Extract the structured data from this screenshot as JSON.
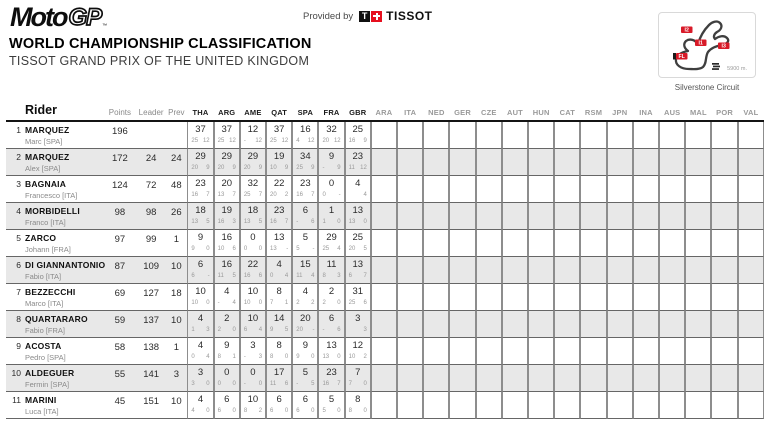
{
  "header": {
    "logo": {
      "moto": "Moto",
      "gp": "GP",
      "tm": "™"
    },
    "provided_by": "Provided by",
    "tissot_wordmark": "TISSOT",
    "title": "WORLD CHAMPIONSHIP CLASSIFICATION",
    "subtitle": "TISSOT GRAND PRIX OF THE UNITED KINGDOM",
    "circuit": {
      "name": "Silverstone Circuit",
      "length": "5900 m.",
      "labels": [
        "I2",
        "I1",
        "I3",
        "FL"
      ]
    }
  },
  "colors": {
    "accent_red": "#d81a28",
    "row_alt": "#e8e8e8",
    "grid_line": "#666666",
    "muted_text": "#8a8a8a"
  },
  "table": {
    "columns": {
      "rider": "Rider",
      "points": "Points",
      "leader": "Leader",
      "prev": "Prev"
    },
    "races_active": [
      "THA",
      "ARG",
      "AME",
      "QAT",
      "SPA",
      "FRA",
      "GBR"
    ],
    "races_upcoming": [
      "ARA",
      "ITA",
      "NED",
      "GER",
      "CZE",
      "AUT",
      "HUN",
      "CAT",
      "RSM",
      "JPN",
      "INA",
      "AUS",
      "MAL",
      "POR",
      "VAL"
    ],
    "rows": [
      {
        "pos": "1",
        "surname": "MARQUEZ",
        "given": "Marc [SPA]",
        "points": "196",
        "leader": "",
        "prev": "",
        "results": [
          {
            "t": "37",
            "r": "25",
            "s": "12"
          },
          {
            "t": "37",
            "r": "25",
            "s": "12"
          },
          {
            "t": "12",
            "r": "-",
            "s": "12"
          },
          {
            "t": "37",
            "r": "25",
            "s": "12"
          },
          {
            "t": "16",
            "r": "4",
            "s": "12"
          },
          {
            "t": "32",
            "r": "20",
            "s": "12"
          },
          {
            "t": "25",
            "r": "16",
            "s": "9"
          }
        ]
      },
      {
        "pos": "2",
        "surname": "MARQUEZ",
        "given": "Alex [SPA]",
        "points": "172",
        "leader": "24",
        "prev": "24",
        "results": [
          {
            "t": "29",
            "r": "20",
            "s": "9"
          },
          {
            "t": "29",
            "r": "20",
            "s": "9"
          },
          {
            "t": "29",
            "r": "20",
            "s": "9"
          },
          {
            "t": "19",
            "r": "10",
            "s": "9"
          },
          {
            "t": "34",
            "r": "25",
            "s": "9"
          },
          {
            "t": "9",
            "r": "-",
            "s": "9"
          },
          {
            "t": "23",
            "r": "11",
            "s": "12"
          }
        ]
      },
      {
        "pos": "3",
        "surname": "BAGNAIA",
        "given": "Francesco [ITA]",
        "points": "124",
        "leader": "72",
        "prev": "48",
        "results": [
          {
            "t": "23",
            "r": "16",
            "s": "7"
          },
          {
            "t": "20",
            "r": "13",
            "s": "7"
          },
          {
            "t": "32",
            "r": "25",
            "s": "7"
          },
          {
            "t": "22",
            "r": "20",
            "s": "2"
          },
          {
            "t": "23",
            "r": "16",
            "s": "7"
          },
          {
            "t": "0",
            "r": "0",
            "s": "-"
          },
          {
            "t": "4",
            "r": "",
            "s": "4"
          }
        ]
      },
      {
        "pos": "4",
        "surname": "MORBIDELLI",
        "given": "Franco [ITA]",
        "points": "98",
        "leader": "98",
        "prev": "26",
        "results": [
          {
            "t": "18",
            "r": "13",
            "s": "5"
          },
          {
            "t": "19",
            "r": "16",
            "s": "3"
          },
          {
            "t": "18",
            "r": "13",
            "s": "5"
          },
          {
            "t": "23",
            "r": "16",
            "s": "7"
          },
          {
            "t": "6",
            "r": "-",
            "s": "6"
          },
          {
            "t": "1",
            "r": "1",
            "s": "0"
          },
          {
            "t": "13",
            "r": "13",
            "s": "0"
          }
        ]
      },
      {
        "pos": "5",
        "surname": "ZARCO",
        "given": "Johann [FRA]",
        "points": "97",
        "leader": "99",
        "prev": "1",
        "results": [
          {
            "t": "9",
            "r": "9",
            "s": "0"
          },
          {
            "t": "16",
            "r": "10",
            "s": "6"
          },
          {
            "t": "0",
            "r": "0",
            "s": "0"
          },
          {
            "t": "13",
            "r": "13",
            "s": "-"
          },
          {
            "t": "5",
            "r": "5",
            "s": "-"
          },
          {
            "t": "29",
            "r": "25",
            "s": "4"
          },
          {
            "t": "25",
            "r": "20",
            "s": "5"
          }
        ]
      },
      {
        "pos": "6",
        "surname": "DI GIANNANTONIO",
        "given": "Fabio [ITA]",
        "points": "87",
        "leader": "109",
        "prev": "10",
        "results": [
          {
            "t": "6",
            "r": "6",
            "s": "-"
          },
          {
            "t": "16",
            "r": "11",
            "s": "5"
          },
          {
            "t": "22",
            "r": "16",
            "s": "6"
          },
          {
            "t": "4",
            "r": "0",
            "s": "4"
          },
          {
            "t": "15",
            "r": "11",
            "s": "4"
          },
          {
            "t": "11",
            "r": "8",
            "s": "3"
          },
          {
            "t": "13",
            "r": "6",
            "s": "7"
          }
        ]
      },
      {
        "pos": "7",
        "surname": "BEZZECCHI",
        "given": "Marco [ITA]",
        "points": "69",
        "leader": "127",
        "prev": "18",
        "results": [
          {
            "t": "10",
            "r": "10",
            "s": "0"
          },
          {
            "t": "4",
            "r": "-",
            "s": "4"
          },
          {
            "t": "10",
            "r": "10",
            "s": "0"
          },
          {
            "t": "8",
            "r": "7",
            "s": "1"
          },
          {
            "t": "4",
            "r": "2",
            "s": "2"
          },
          {
            "t": "2",
            "r": "2",
            "s": "0"
          },
          {
            "t": "31",
            "r": "25",
            "s": "6"
          }
        ]
      },
      {
        "pos": "8",
        "surname": "QUARTARARO",
        "given": "Fabio [FRA]",
        "points": "59",
        "leader": "137",
        "prev": "10",
        "results": [
          {
            "t": "4",
            "r": "1",
            "s": "3"
          },
          {
            "t": "2",
            "r": "2",
            "s": "0"
          },
          {
            "t": "10",
            "r": "6",
            "s": "4"
          },
          {
            "t": "14",
            "r": "9",
            "s": "5"
          },
          {
            "t": "20",
            "r": "20",
            "s": "-"
          },
          {
            "t": "6",
            "r": "-",
            "s": "6"
          },
          {
            "t": "3",
            "r": "",
            "s": "3"
          }
        ]
      },
      {
        "pos": "9",
        "surname": "ACOSTA",
        "given": "Pedro [SPA]",
        "points": "58",
        "leader": "138",
        "prev": "1",
        "results": [
          {
            "t": "4",
            "r": "0",
            "s": "4"
          },
          {
            "t": "9",
            "r": "8",
            "s": "1"
          },
          {
            "t": "3",
            "r": "-",
            "s": "3"
          },
          {
            "t": "8",
            "r": "8",
            "s": "0"
          },
          {
            "t": "9",
            "r": "9",
            "s": "0"
          },
          {
            "t": "13",
            "r": "13",
            "s": "0"
          },
          {
            "t": "12",
            "r": "10",
            "s": "2"
          }
        ]
      },
      {
        "pos": "10",
        "surname": "ALDEGUER",
        "given": "Fermin [SPA]",
        "points": "55",
        "leader": "141",
        "prev": "3",
        "results": [
          {
            "t": "3",
            "r": "3",
            "s": "0"
          },
          {
            "t": "0",
            "r": "0",
            "s": "0"
          },
          {
            "t": "0",
            "r": "-",
            "s": "0"
          },
          {
            "t": "17",
            "r": "11",
            "s": "6"
          },
          {
            "t": "5",
            "r": "-",
            "s": "5"
          },
          {
            "t": "23",
            "r": "16",
            "s": "7"
          },
          {
            "t": "7",
            "r": "7",
            "s": "0"
          }
        ]
      },
      {
        "pos": "11",
        "surname": "MARINI",
        "given": "Luca [ITA]",
        "points": "45",
        "leader": "151",
        "prev": "10",
        "results": [
          {
            "t": "4",
            "r": "4",
            "s": "0"
          },
          {
            "t": "6",
            "r": "6",
            "s": "0"
          },
          {
            "t": "10",
            "r": "8",
            "s": "2"
          },
          {
            "t": "6",
            "r": "6",
            "s": "0"
          },
          {
            "t": "6",
            "r": "6",
            "s": "0"
          },
          {
            "t": "5",
            "r": "5",
            "s": "0"
          },
          {
            "t": "8",
            "r": "8",
            "s": "0"
          }
        ]
      }
    ]
  }
}
